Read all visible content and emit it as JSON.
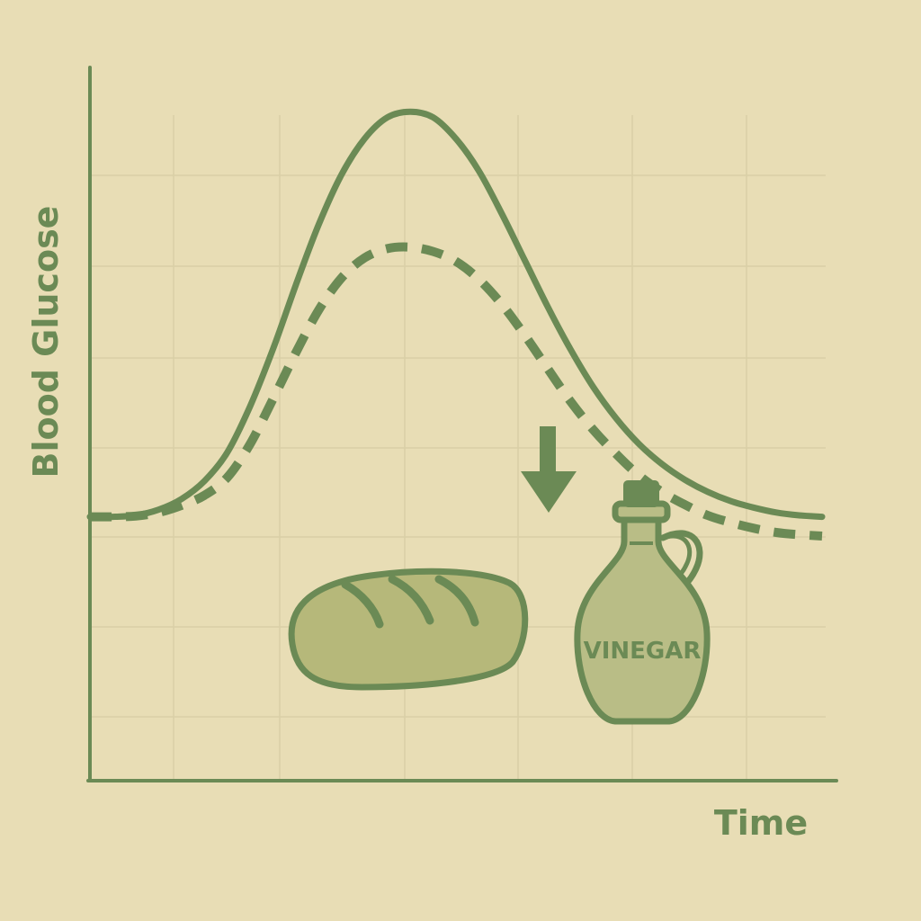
{
  "chart_data": {
    "type": "line",
    "title": "",
    "xlabel": "Time",
    "ylabel": "Blood Glucose",
    "x": [
      0,
      0.5,
      1,
      1.5,
      2,
      2.5,
      3,
      3.5,
      4,
      4.5,
      5,
      5.5,
      6,
      6.5,
      7,
      7.5,
      8,
      8.5,
      9,
      9.5,
      10,
      10.5,
      11,
      11.5,
      12,
      12.5,
      13,
      13.5,
      14,
      14.5,
      15,
      15.5,
      16
    ],
    "xlim": [
      0,
      16
    ],
    "ylim": [
      0,
      10
    ],
    "grid": true,
    "series": [
      {
        "style": "solid",
        "values": [
          3.7,
          3.7,
          3.72,
          3.8,
          3.95,
          4.2,
          4.6,
          5.25,
          6.05,
          6.95,
          7.8,
          8.5,
          9.0,
          9.3,
          9.38,
          9.3,
          9.0,
          8.55,
          7.95,
          7.3,
          6.65,
          6.05,
          5.52,
          5.08,
          4.72,
          4.44,
          4.22,
          4.05,
          3.92,
          3.83,
          3.76,
          3.72,
          3.7
        ]
      },
      {
        "style": "dashed",
        "values": [
          3.7,
          3.7,
          3.71,
          3.76,
          3.86,
          4.0,
          4.25,
          4.72,
          5.35,
          6.0,
          6.6,
          7.05,
          7.33,
          7.46,
          7.48,
          7.42,
          7.28,
          7.03,
          6.68,
          6.25,
          5.78,
          5.32,
          4.92,
          4.58,
          4.28,
          4.05,
          3.87,
          3.72,
          3.62,
          3.54,
          3.48,
          3.45,
          3.43
        ]
      }
    ],
    "annotations": [
      {
        "type": "arrow",
        "direction": "down"
      },
      {
        "type": "image",
        "name": "bread-loaf"
      },
      {
        "type": "image",
        "name": "vinegar-bottle",
        "label": "VINEGAR"
      }
    ]
  },
  "colors": {
    "background": "#e8ddb5",
    "ink": "#6b8a55",
    "grid": "#d9cfa6",
    "fill_bread": "#b6b87a",
    "fill_bottle": "#b9bd86"
  }
}
